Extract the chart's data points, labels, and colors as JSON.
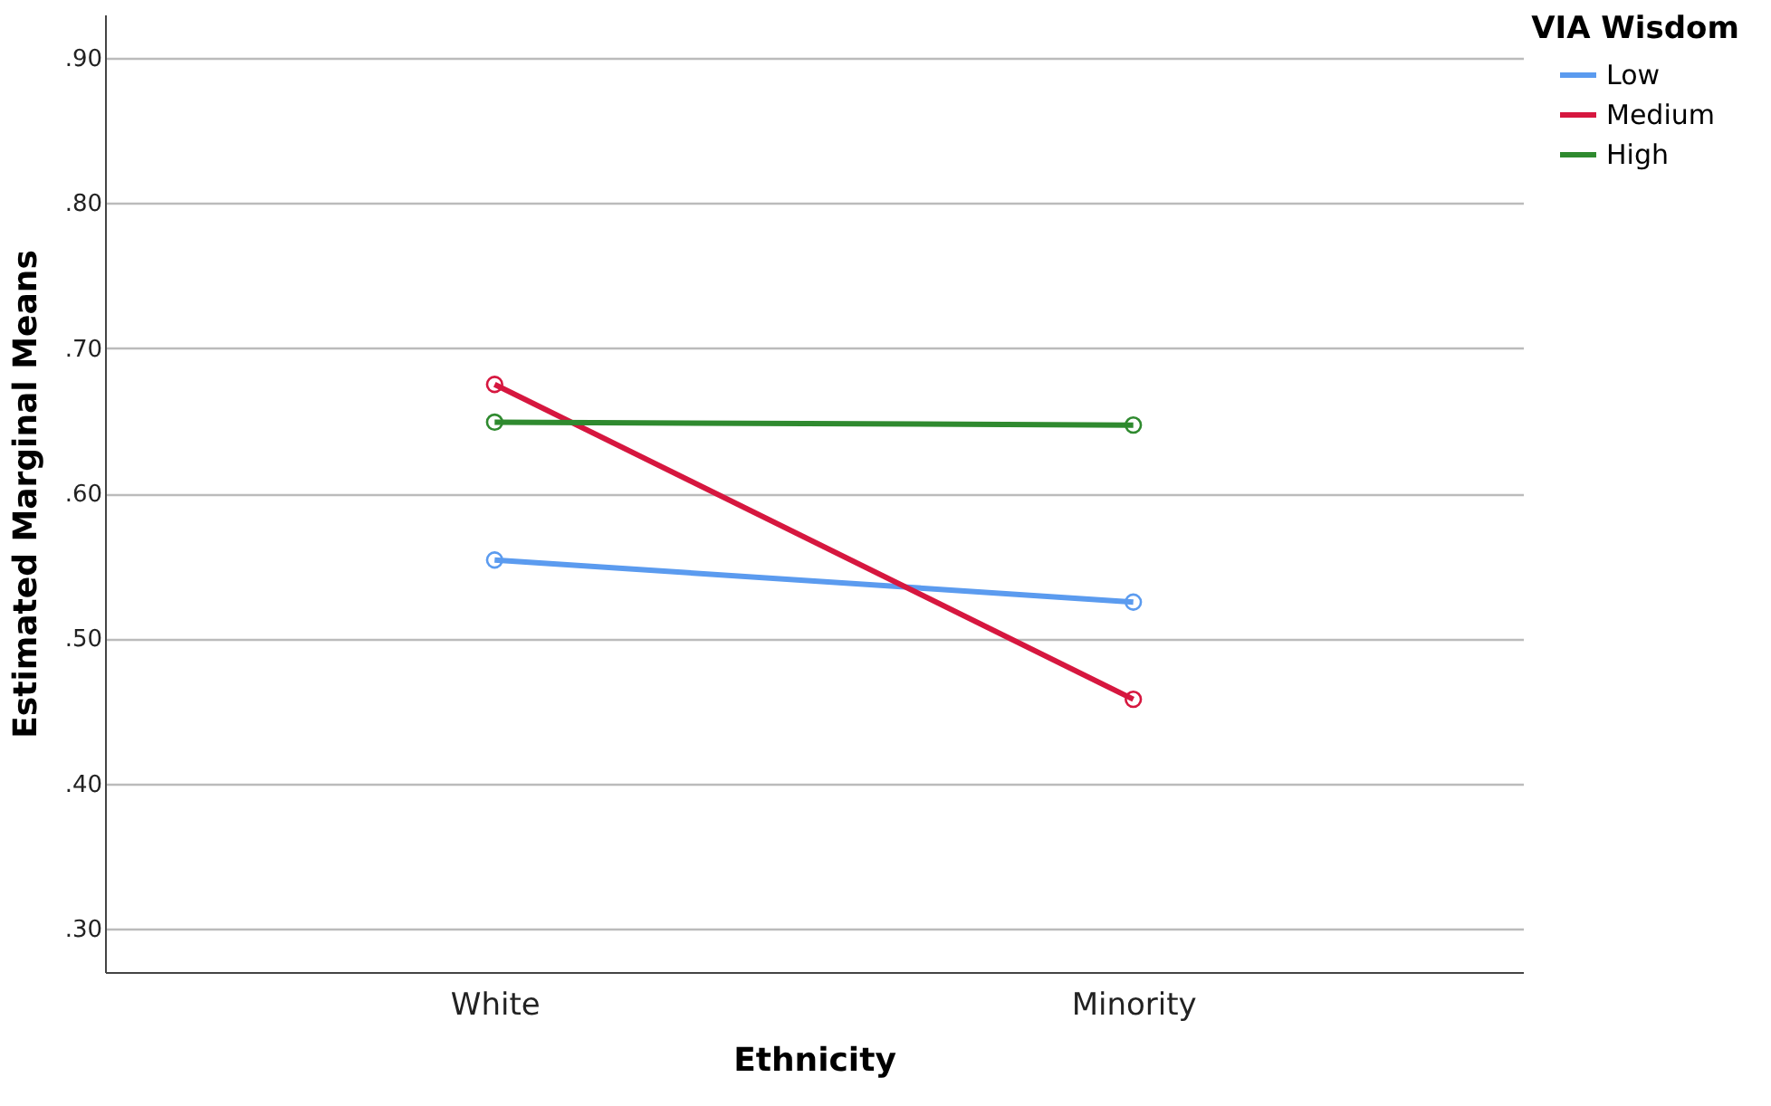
{
  "chart_data": {
    "type": "line",
    "xlabel": "Ethnicity",
    "ylabel": "Estimated Marginal Means",
    "legend_title": "VIA Wisdom",
    "categories": [
      "White",
      "Minority"
    ],
    "series": [
      {
        "name": "Low",
        "color": "#5b9bef",
        "values": [
          0.554,
          0.525
        ]
      },
      {
        "name": "Medium",
        "color": "#d6173f",
        "values": [
          0.675,
          0.458
        ]
      },
      {
        "name": "High",
        "color": "#2f8a2f",
        "values": [
          0.649,
          0.647
        ]
      }
    ],
    "ylim": [
      0.27,
      0.93
    ],
    "yticks": [
      {
        "value": 0.3,
        "label": ".30"
      },
      {
        "value": 0.4,
        "label": ".40"
      },
      {
        "value": 0.5,
        "label": ".50"
      },
      {
        "value": 0.6,
        "label": ".60"
      },
      {
        "value": 0.7,
        "label": ".70"
      },
      {
        "value": 0.8,
        "label": ".80"
      },
      {
        "value": 0.9,
        "label": ".90"
      }
    ],
    "grid": "y",
    "legend": "top right",
    "marker": "circle",
    "line_style": "solid"
  }
}
